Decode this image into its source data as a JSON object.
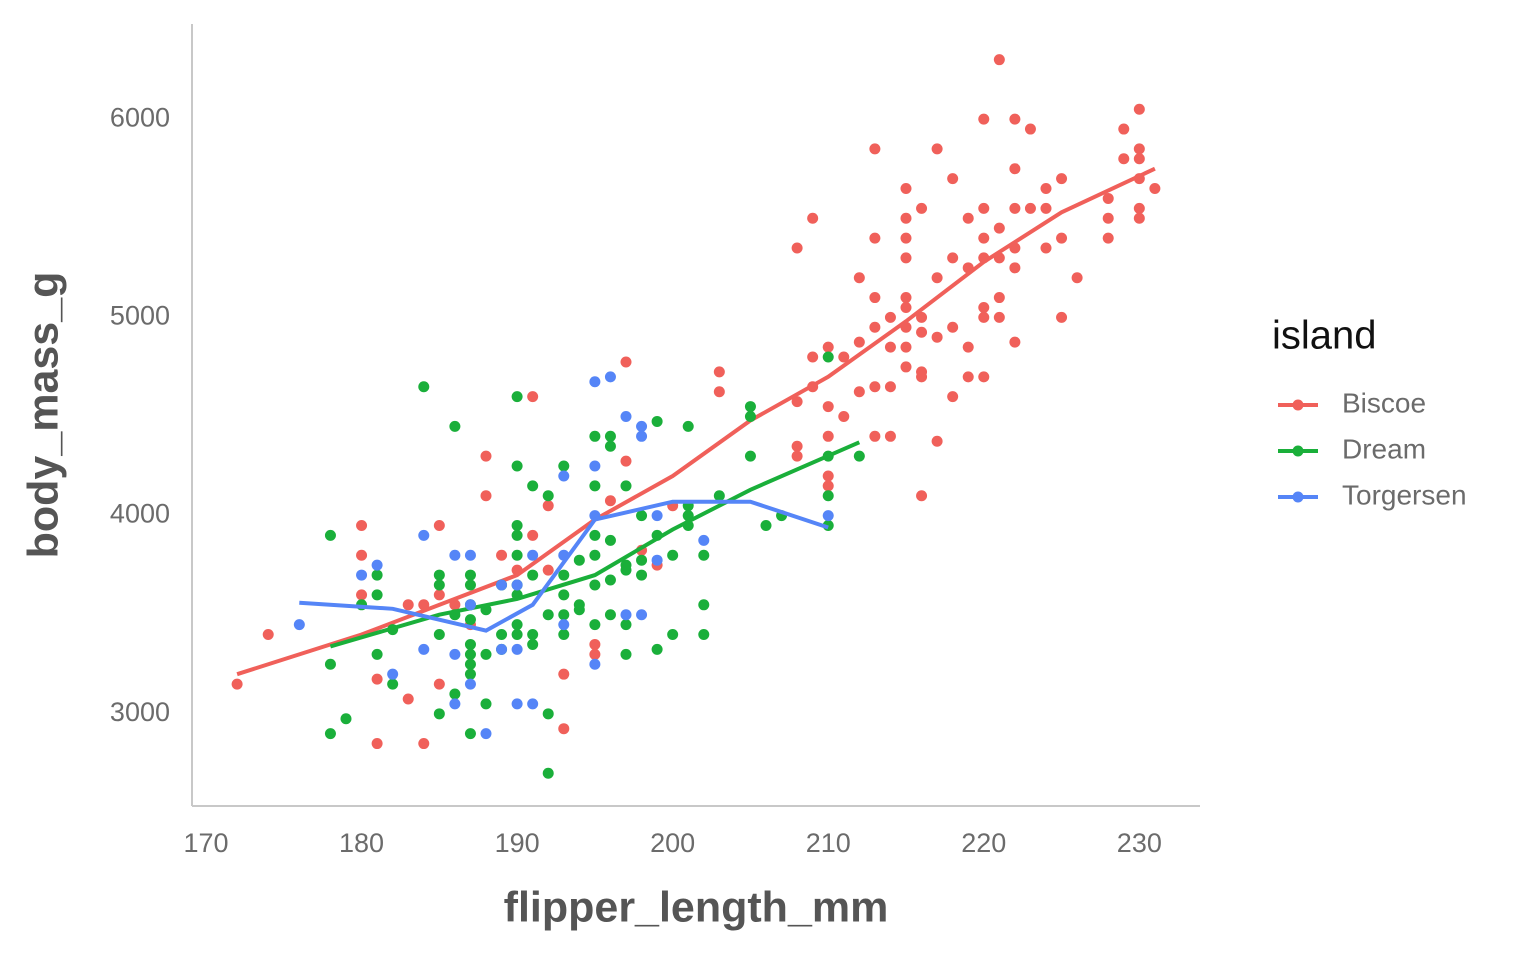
{
  "chart_data": {
    "type": "scatter",
    "x_label": "flipper_length_mm",
    "y_label": "body_mass_g",
    "legend_title": "island",
    "legend": "right",
    "xlim": [
      169.1,
      233.9
    ],
    "ylim": [
      2535,
      6480
    ],
    "xticks": [
      170,
      180,
      190,
      200,
      210,
      220,
      230
    ],
    "yticks": [
      3000,
      4000,
      5000,
      6000
    ],
    "series": [
      {
        "name": "Biscoe",
        "color": "#f0605a",
        "x": [
          172,
          174,
          180,
          180,
          180,
          181,
          181,
          183,
          183,
          184,
          184,
          185,
          185,
          185,
          186,
          187,
          188,
          188,
          189,
          190,
          191,
          191,
          192,
          192,
          193,
          193,
          195,
          195,
          196,
          197,
          197,
          198,
          199,
          200,
          203,
          203,
          208,
          208,
          208,
          208,
          209,
          209,
          209,
          210,
          210,
          210,
          210,
          210,
          211,
          211,
          212,
          212,
          212,
          213,
          213,
          213,
          213,
          213,
          213,
          214,
          214,
          214,
          214,
          215,
          215,
          215,
          215,
          215,
          215,
          215,
          215,
          215,
          216,
          216,
          216,
          216,
          216,
          216,
          217,
          217,
          217,
          217,
          218,
          218,
          218,
          218,
          219,
          219,
          219,
          219,
          220,
          220,
          220,
          220,
          220,
          220,
          220,
          221,
          221,
          221,
          221,
          221,
          222,
          222,
          222,
          222,
          222,
          222,
          223,
          223,
          224,
          224,
          224,
          225,
          225,
          225,
          226,
          228,
          228,
          228,
          229,
          229,
          230,
          230,
          230,
          230,
          230,
          230,
          231
        ],
        "y": [
          3150,
          3400,
          3950,
          3800,
          3600,
          2850,
          3175,
          3550,
          3075,
          3550,
          2850,
          3950,
          3600,
          3150,
          3550,
          3450,
          4300,
          4100,
          3800,
          3725,
          4600,
          3900,
          4050,
          3725,
          3200,
          2925,
          3350,
          3300,
          4075,
          4775,
          4275,
          3825,
          3750,
          4050,
          4725,
          4625,
          5350,
          4575,
          4350,
          4300,
          5500,
          4800,
          4650,
          4850,
          4550,
          4400,
          4200,
          4150,
          4800,
          4500,
          5200,
          4875,
          4625,
          5850,
          5400,
          5100,
          4950,
          4650,
          4400,
          5000,
          4850,
          4650,
          4400,
          5650,
          5500,
          5400,
          5300,
          5100,
          5050,
          4950,
          4850,
          4750,
          5550,
          5000,
          4925,
          4725,
          4700,
          4100,
          5850,
          5200,
          4900,
          4375,
          5700,
          5300,
          4950,
          4600,
          5500,
          5250,
          4850,
          4700,
          6000,
          5550,
          5400,
          5300,
          5050,
          5000,
          4700,
          6300,
          5450,
          5300,
          5100,
          5000,
          6000,
          5750,
          5550,
          5350,
          5250,
          4875,
          5950,
          5550,
          5650,
          5550,
          5350,
          5700,
          5400,
          5000,
          5200,
          5600,
          5500,
          5400,
          5950,
          5800,
          6050,
          5850,
          5800,
          5700,
          5550,
          5500,
          5650
        ],
        "smooth": {
          "x": [
            172,
            180,
            190,
            195,
            200,
            205,
            210,
            215,
            220,
            225,
            231
          ],
          "y": [
            3200,
            3400,
            3700,
            3980,
            4200,
            4480,
            4700,
            4980,
            5280,
            5530,
            5750
          ]
        }
      },
      {
        "name": "Dream",
        "color": "#1aaf3a",
        "x": [
          178,
          178,
          178,
          179,
          180,
          181,
          181,
          181,
          182,
          182,
          184,
          185,
          185,
          185,
          185,
          186,
          186,
          186,
          187,
          187,
          187,
          187,
          187,
          187,
          187,
          187,
          187,
          188,
          188,
          188,
          189,
          189,
          189,
          190,
          190,
          190,
          190,
          190,
          190,
          190,
          190,
          190,
          191,
          191,
          191,
          191,
          192,
          192,
          192,
          192,
          193,
          193,
          193,
          193,
          193,
          194,
          194,
          194,
          195,
          195,
          195,
          195,
          195,
          195,
          196,
          196,
          196,
          196,
          196,
          197,
          197,
          197,
          197,
          197,
          198,
          198,
          198,
          199,
          199,
          199,
          200,
          200,
          201,
          201,
          201,
          201,
          202,
          202,
          202,
          203,
          205,
          205,
          205,
          206,
          207,
          210,
          210,
          210,
          210,
          212
        ],
        "y": [
          3900,
          3250,
          2900,
          2975,
          3550,
          3700,
          3600,
          3300,
          3425,
          3150,
          4650,
          3700,
          3650,
          3400,
          3000,
          4450,
          3500,
          3100,
          3700,
          3650,
          3550,
          3475,
          3350,
          3300,
          3250,
          3200,
          2900,
          3525,
          3300,
          3050,
          3650,
          3400,
          3325,
          4600,
          4250,
          3950,
          3900,
          3800,
          3650,
          3600,
          3450,
          3400,
          4150,
          3700,
          3400,
          3350,
          4100,
          3500,
          3000,
          2700,
          4250,
          3700,
          3600,
          3500,
          3400,
          3775,
          3550,
          3525,
          4400,
          4150,
          3900,
          3800,
          3650,
          3450,
          4400,
          4350,
          3875,
          3675,
          3500,
          4150,
          3750,
          3725,
          3450,
          3300,
          4000,
          3775,
          3700,
          4475,
          3900,
          3325,
          3800,
          3400,
          4450,
          4050,
          4000,
          3950,
          3800,
          3550,
          3400,
          4100,
          4550,
          4500,
          4300,
          3950,
          4000,
          4800,
          4300,
          4100,
          3950,
          4300
        ],
        "smooth": {
          "x": [
            178,
            185,
            190,
            195,
            200,
            205,
            212
          ],
          "y": [
            3340,
            3500,
            3580,
            3700,
            3930,
            4130,
            4370
          ]
        }
      },
      {
        "name": "Torgersen",
        "color": "#5585f7",
        "x": [
          176,
          180,
          181,
          182,
          184,
          184,
          186,
          186,
          186,
          187,
          187,
          187,
          188,
          189,
          189,
          190,
          190,
          190,
          191,
          191,
          193,
          193,
          193,
          195,
          195,
          195,
          195,
          196,
          197,
          197,
          198,
          198,
          198,
          199,
          199,
          202,
          210
        ],
        "y": [
          3450,
          3700,
          3750,
          3200,
          3900,
          3325,
          3800,
          3300,
          3050,
          3800,
          3550,
          3150,
          2900,
          3650,
          3325,
          3650,
          3325,
          3050,
          3800,
          3050,
          4200,
          3800,
          3450,
          4675,
          4250,
          4000,
          3250,
          4700,
          4500,
          3500,
          4450,
          4400,
          3500,
          4000,
          3775,
          3875,
          4000
        ],
        "smooth": {
          "x": [
            176,
            182,
            188,
            191,
            195,
            200,
            205,
            210
          ],
          "y": [
            3560,
            3530,
            3420,
            3550,
            3980,
            4070,
            4070,
            3940
          ]
        }
      }
    ]
  }
}
